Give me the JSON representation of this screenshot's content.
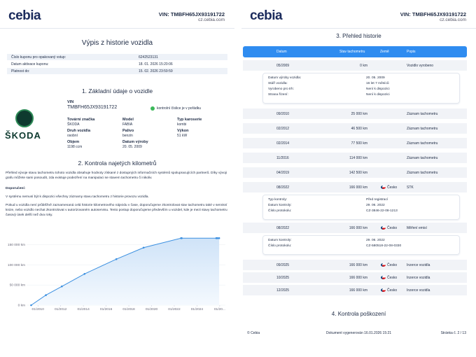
{
  "left_page": {
    "logo": "cebia",
    "vin": "VIN: TMBFH65JX93191722",
    "site": "cz.cebia.com",
    "title": "Výpis z historie vozidla",
    "info": [
      [
        "Číslo kuponu pro opakovaný vstup:",
        "6242523131"
      ],
      [
        "Datum aktivace kuponu:",
        "18. 01. 2026 15:20:06"
      ],
      [
        "Platnost do:",
        "15. 02. 2026 23:59:59"
      ]
    ],
    "section1": "1. Základní údaje o vozidle",
    "brand_logo": "ŠKODA",
    "vin_label": "VIN",
    "vin_value": "TMBFH65JX93191722",
    "vin_check": "kontrolní číslice je v pořádku",
    "fields": [
      [
        "Tovární značka",
        "ŠKODA"
      ],
      [
        "Model",
        "FABIA"
      ],
      [
        "Typ karoserie",
        "kombi"
      ],
      [
        "Druh vozidla",
        "osobní"
      ],
      [
        "Palivo",
        "benzin"
      ],
      [
        "Výkon",
        "51 kW"
      ],
      [
        "Objem",
        "1198 ccm"
      ],
      [
        "Datum výroby",
        "20. 05. 2009"
      ]
    ],
    "section2": "2. Kontrola najetých kilometrů",
    "paragraphs": [
      "Přehled vývoje stavu tachometru tohoto vozidla obsahuje hodnoty získané z dostupných informačních systémů spolupracujících partnerů. Díky vývoji grafu můžete sami posoudit, zda existuje podezření na manipulaci se stavem tachometru či nikoliv.",
      "Doporučení:",
      "V systému nemusí být k dispozici všechny záznamy stavu tachometru z historie provozu vozidla.",
      "Pokud u vozidla není průběžně zaznamenaná celá historie kilometrového nájezdu v čase, doporučujeme zkontrolovat stav tachometru také v servisní knize, nebo vozidlo nechat zkontrolovat v autorizovaném autoservisu. Tento postup doporučujeme především u vozidel, kde je mezi stavy tachometru časový úsek delší než dva roky."
    ],
    "chart": {
      "type": "line",
      "color": "#3a8fe0",
      "x": [
        2009.4,
        2010.7,
        2012.1,
        2014.1,
        2016.9,
        2019.3,
        2022.6,
        2022.65,
        2025.7,
        2025.8,
        2025.95
      ],
      "values": [
        0,
        25000,
        46500,
        77500,
        114000,
        142500,
        166000,
        166000,
        166000,
        166000,
        166000
      ],
      "xlim": [
        2009,
        2026.5
      ],
      "ylim": [
        0,
        175000
      ],
      "xticks": [
        {
          "value": 2010,
          "label": "01/2010"
        },
        {
          "value": 2012,
          "label": "01/2012"
        },
        {
          "value": 2014,
          "label": "01/2014"
        },
        {
          "value": 2016,
          "label": "01/2016"
        },
        {
          "value": 2018,
          "label": "01/2018"
        },
        {
          "value": 2020,
          "label": "01/2020"
        },
        {
          "value": 2022,
          "label": "01/2022"
        },
        {
          "value": 2024,
          "label": "01/2024"
        },
        {
          "value": 2026,
          "label": "01/20..."
        }
      ],
      "yticks": [
        {
          "value": 0,
          "label": "0 km"
        },
        {
          "value": 50000,
          "label": "50 000 km"
        },
        {
          "value": 100000,
          "label": "100 000 km"
        },
        {
          "value": 150000,
          "label": "150 000 km"
        }
      ],
      "grid": true
    }
  },
  "right_page": {
    "logo": "cebia",
    "vin": "VIN: TMBFH65JX93191722",
    "site": "cz.cebia.com",
    "title": "3. Přehled historie",
    "columns": [
      "Datum",
      "Stav tachometru",
      "Země",
      "Popis"
    ],
    "history": [
      {
        "year": "2009",
        "entries": [
          {
            "date": "05/2009",
            "km": "0 km",
            "desc": "Vozidlo vyrobeno",
            "details": [
              [
                "Datum výroby vozidla:",
                "20. 05. 2009"
              ],
              [
                "Stáří vozidla:",
                "16 let 7 měsíců"
              ],
              [
                "Vyrobeno pro trh:",
                "Není k dispozici"
              ],
              [
                "Strana řízení:",
                "Není k dispozici"
              ]
            ]
          }
        ]
      },
      {
        "year": "2010",
        "entries": [
          {
            "date": "09/2010",
            "km": "25 000 km",
            "desc": "Záznam tachometru"
          }
        ]
      },
      {
        "year": "2012",
        "entries": [
          {
            "date": "02/2012",
            "km": "46 500 km",
            "desc": "Záznam tachometru"
          }
        ]
      },
      {
        "year": "2014",
        "entries": [
          {
            "date": "02/2014",
            "km": "77 500 km",
            "desc": "Záznam tachometru"
          }
        ]
      },
      {
        "year": "2016",
        "entries": [
          {
            "date": "11/2016",
            "km": "114 000 km",
            "desc": "Záznam tachometru"
          }
        ]
      },
      {
        "year": "2019",
        "entries": [
          {
            "date": "04/2019",
            "km": "142 500 km",
            "desc": "Záznam tachometru"
          }
        ]
      },
      {
        "year": "2022",
        "entries": [
          {
            "date": "08/2022",
            "km": "166 000 km",
            "country": "Česko",
            "desc": "STK",
            "details": [
              [
                "Typ kontroly:",
                "Před registrací"
              ],
              [
                "Datum kontroly:",
                "29. 06. 2022"
              ],
              [
                "Číslo protokolu:",
                "CZ-3846-22-08-1213"
              ]
            ]
          },
          {
            "date": "08/2022",
            "km": "166 000 km",
            "country": "Česko",
            "desc": "Měření emisí",
            "details": [
              [
                "Datum kontroly:",
                "29. 06. 2022"
              ],
              [
                "Číslo protokolu:",
                "CZ-580518-22-08-0330"
              ]
            ]
          }
        ]
      },
      {
        "year": "2025",
        "entries": [
          {
            "date": "09/2025",
            "km": "166 000 km",
            "country": "Česko",
            "desc": "Inzerce vozidla"
          },
          {
            "date": "10/2025",
            "km": "166 000 km",
            "country": "Česko",
            "desc": "Inzerce vozidla"
          },
          {
            "date": "12/2025",
            "km": "166 000 km",
            "country": "Česko",
            "desc": "Inzerce vozidla"
          }
        ]
      }
    ],
    "section4": "4. Kontrola poškození",
    "footer": [
      "© Cebia",
      "Dokument vygenerován 16.01.2026 15:21",
      "Stránka č. 2 / 13"
    ]
  }
}
